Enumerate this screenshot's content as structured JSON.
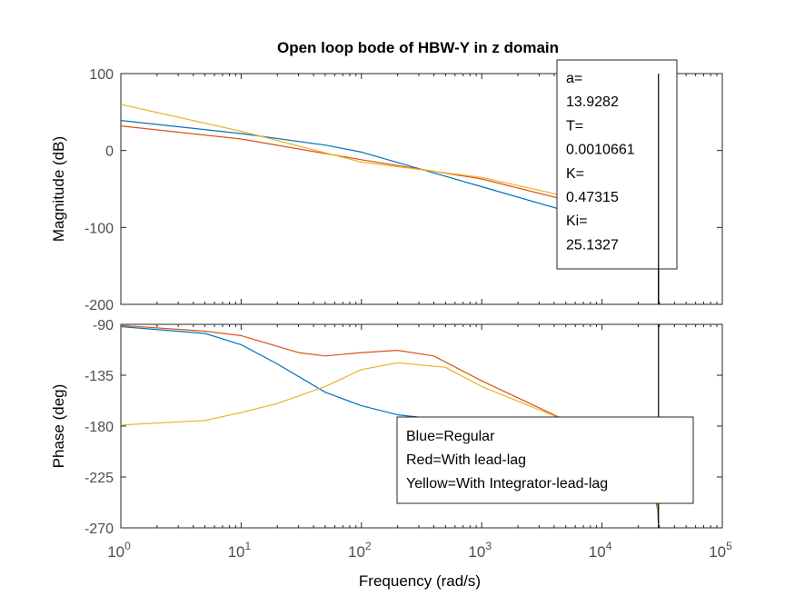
{
  "figure_title": "Open loop bode of HBW-Y in z domain",
  "colors": {
    "blue": "#0072BD",
    "red": "#D95319",
    "yellow": "#EDB120",
    "axis": "#262626",
    "tick_text": "#4d4d4d"
  },
  "chart_data": [
    {
      "type": "line",
      "panel": "magnitude",
      "title": "Open loop bode of HBW-Y in z domain",
      "xlabel": "",
      "ylabel": "Magnitude (dB)",
      "xscale": "log",
      "xlim": [
        1,
        100000
      ],
      "ylim": [
        -200,
        100
      ],
      "y_ticks": [
        100,
        0,
        -100,
        -200
      ],
      "y_tick_labels": [
        "100",
        "0",
        "-100",
        "-200"
      ],
      "grid": false,
      "series": [
        {
          "color": "#0072BD",
          "x": [
            1,
            10,
            50,
            100,
            1000,
            10000,
            20000,
            27000,
            29000,
            29470
          ],
          "y": [
            39,
            22,
            7,
            -2,
            -47,
            -92,
            -107,
            -120,
            -130,
            -145
          ]
        },
        {
          "color": "#D95319",
          "x": [
            1,
            10,
            100,
            1000,
            10000,
            20000,
            27000,
            29000,
            29470
          ],
          "y": [
            32,
            15,
            -12,
            -37,
            -76,
            -95,
            -108,
            -118,
            -128
          ]
        },
        {
          "color": "#EDB120",
          "x": [
            1,
            10,
            100,
            1000,
            10000,
            20000,
            27000,
            29000,
            29470
          ],
          "y": [
            60,
            25,
            -15,
            -35,
            -70,
            -92,
            -104,
            -110,
            -123
          ]
        }
      ],
      "annotation": {
        "lines": [
          "a=",
          "13.9282",
          "T=",
          "0.0010661",
          "K=",
          "0.47315",
          "Ki=",
          "25.1327"
        ]
      },
      "vline_x": 29470
    },
    {
      "type": "line",
      "panel": "phase",
      "xlabel": "Frequency  (rad/s)",
      "ylabel": "Phase (deg)",
      "xscale": "log",
      "xlim": [
        1,
        100000
      ],
      "ylim": [
        -270,
        -90
      ],
      "x_ticks": [
        1,
        10,
        100,
        1000,
        10000,
        100000
      ],
      "x_tick_labels": [
        {
          "base": "10",
          "exp": "0"
        },
        {
          "base": "10",
          "exp": "1"
        },
        {
          "base": "10",
          "exp": "2"
        },
        {
          "base": "10",
          "exp": "3"
        },
        {
          "base": "10",
          "exp": "4"
        },
        {
          "base": "10",
          "exp": "5"
        }
      ],
      "y_ticks": [
        -90,
        -135,
        -180,
        -225,
        -270
      ],
      "y_tick_labels": [
        "-90",
        "-135",
        "-180",
        "-225",
        "-270"
      ],
      "grid": false,
      "series": [
        {
          "color": "#0072BD",
          "x": [
            1,
            5,
            10,
            20,
            50,
            100,
            200,
            1000,
            10000,
            20000,
            27000,
            29000,
            29470
          ],
          "y": [
            -92,
            -98,
            -108,
            -125,
            -150,
            -162,
            -170,
            -178,
            -195,
            -215,
            -237,
            -254,
            -266
          ]
        },
        {
          "color": "#D95319",
          "x": [
            1,
            5,
            10,
            30,
            50,
            100,
            200,
            400,
            1000,
            10000,
            20000,
            27000,
            29000,
            29470
          ],
          "y": [
            -91,
            -96,
            -100,
            -115,
            -118,
            -115,
            -113,
            -118,
            -140,
            -190,
            -215,
            -235,
            -252,
            -262
          ]
        },
        {
          "color": "#EDB120",
          "x": [
            1,
            5,
            10,
            20,
            50,
            100,
            200,
            500,
            1000,
            10000,
            20000,
            27000,
            29000,
            29470
          ],
          "y": [
            -179,
            -175,
            -168,
            -160,
            -145,
            -130,
            -124,
            -128,
            -145,
            -188,
            -210,
            -232,
            -248,
            -258
          ]
        }
      ],
      "legend_box": {
        "lines": [
          "Blue=Regular",
          "Red=With lead-lag",
          "Yellow=With Integrator-lead-lag"
        ]
      },
      "vline_x": 29470
    }
  ]
}
